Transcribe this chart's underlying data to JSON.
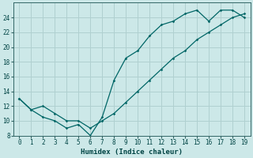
{
  "xlabel": "Humidex (Indice chaleur)",
  "bg_color": "#cce8e8",
  "grid_color": "#b0d0d0",
  "line_color": "#006666",
  "xlim": [
    -0.5,
    19.5
  ],
  "ylim": [
    8,
    26
  ],
  "xticks": [
    0,
    1,
    2,
    3,
    4,
    5,
    6,
    7,
    8,
    9,
    10,
    11,
    12,
    13,
    14,
    15,
    16,
    17,
    18,
    19
  ],
  "yticks": [
    8,
    10,
    12,
    14,
    16,
    18,
    20,
    22,
    24
  ],
  "line1_x": [
    0,
    1,
    2,
    3,
    4,
    5,
    6,
    7,
    8,
    9,
    10,
    11,
    12,
    13,
    14,
    15,
    16,
    17,
    18,
    19
  ],
  "line1_y": [
    13,
    11.5,
    10.5,
    10,
    9,
    9.5,
    8,
    10.5,
    15.5,
    18.5,
    19.5,
    21.5,
    23,
    23.5,
    24.5,
    25,
    23.5,
    25,
    25,
    24
  ],
  "line2_x": [
    0,
    1,
    2,
    3,
    4,
    5,
    6,
    7,
    8,
    9,
    10,
    11,
    12,
    13,
    14,
    15,
    16,
    17,
    18,
    19
  ],
  "line2_y": [
    13,
    11.5,
    12,
    11,
    10,
    10,
    9,
    10,
    11,
    12.5,
    14,
    15.5,
    17,
    18.5,
    19.5,
    21,
    22,
    23,
    24,
    24.5
  ]
}
